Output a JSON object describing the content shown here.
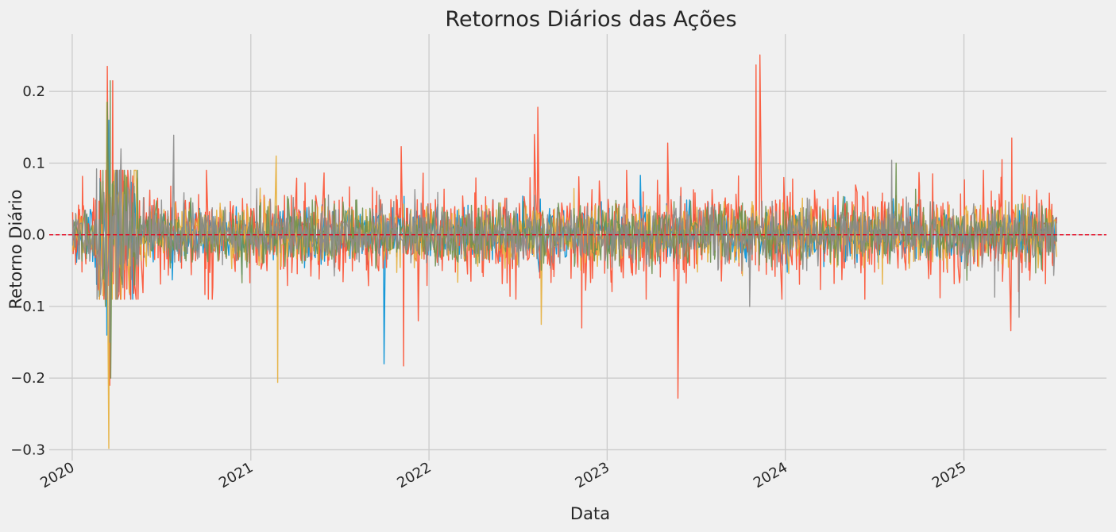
{
  "chart_data": {
    "type": "line",
    "title": "Retornos Diários das Ações",
    "xlabel": "Data",
    "ylabel": "Retorno Diário",
    "x_range": [
      "2020-01-02",
      "2025-07-10"
    ],
    "xlim": [
      "2019-11-15",
      "2025-10-20"
    ],
    "ylim": [
      -0.315,
      0.28
    ],
    "x_ticks": [
      {
        "date": "2020-01-01",
        "label": "2020"
      },
      {
        "date": "2021-01-01",
        "label": "2021"
      },
      {
        "date": "2022-01-01",
        "label": "2022"
      },
      {
        "date": "2023-01-01",
        "label": "2023"
      },
      {
        "date": "2024-01-01",
        "label": "2024"
      },
      {
        "date": "2025-01-01",
        "label": "2025"
      }
    ],
    "y_ticks": [
      {
        "value": 0.2,
        "label": "0.2"
      },
      {
        "value": 0.1,
        "label": "0.1"
      },
      {
        "value": 0.0,
        "label": "0.0"
      },
      {
        "value": -0.1,
        "label": "−0.1"
      },
      {
        "value": -0.2,
        "label": "−0.2"
      },
      {
        "value": -0.3,
        "label": "−0.3"
      }
    ],
    "grid": true,
    "reference_line": {
      "y": 0.0,
      "style": "dashed",
      "color": "#e5001a"
    },
    "series": [
      {
        "color": "#008fd5",
        "base_volatility": 0.018,
        "spikes": [
          [
            "2020-03-12",
            -0.14
          ],
          [
            "2020-03-16",
            0.16
          ],
          [
            "2020-04-20",
            0.083
          ],
          [
            "2021-10-01",
            -0.18
          ],
          [
            "2023-03-10",
            0.083
          ]
        ]
      },
      {
        "color": "#fc4f30",
        "base_volatility": 0.032,
        "spikes": [
          [
            "2020-03-13",
            0.235
          ],
          [
            "2020-03-18",
            -0.21
          ],
          [
            "2020-03-24",
            0.215
          ],
          [
            "2021-11-05",
            0.123
          ],
          [
            "2021-11-10",
            -0.183
          ],
          [
            "2021-12-10",
            -0.12
          ],
          [
            "2022-08-12",
            0.178
          ],
          [
            "2022-08-05",
            0.14
          ],
          [
            "2022-11-10",
            -0.13
          ],
          [
            "2023-05-05",
            0.128
          ],
          [
            "2023-05-26",
            -0.228
          ],
          [
            "2023-11-02",
            0.237
          ],
          [
            "2023-11-10",
            0.251
          ],
          [
            "2025-04-09",
            0.135
          ],
          [
            "2025-04-07",
            -0.134
          ],
          [
            "2025-03-20",
            0.105
          ]
        ]
      },
      {
        "color": "#e5ae38",
        "base_volatility": 0.02,
        "spikes": [
          [
            "2020-03-16",
            -0.298
          ],
          [
            "2020-03-12",
            0.185
          ],
          [
            "2021-02-25",
            -0.206
          ],
          [
            "2021-02-22",
            0.11
          ],
          [
            "2022-08-19",
            -0.125
          ],
          [
            "2021-01-20",
            0.065
          ]
        ]
      },
      {
        "color": "#6d904f",
        "base_volatility": 0.02,
        "spikes": [
          [
            "2020-03-09",
            -0.1
          ],
          [
            "2020-03-13",
            0.185
          ],
          [
            "2020-03-19",
            0.215
          ],
          [
            "2020-03-20",
            -0.2
          ],
          [
            "2024-08-15",
            0.1
          ]
        ]
      },
      {
        "color": "#8b8b8b",
        "base_volatility": 0.02,
        "spikes": [
          [
            "2020-02-20",
            0.092
          ],
          [
            "2020-03-18",
            -0.15
          ],
          [
            "2020-04-10",
            0.12
          ],
          [
            "2020-07-27",
            0.139
          ],
          [
            "2023-10-20",
            -0.1
          ],
          [
            "2024-08-06",
            0.104
          ],
          [
            "2025-04-24",
            -0.115
          ],
          [
            "2025-03-05",
            -0.087
          ]
        ]
      }
    ]
  }
}
